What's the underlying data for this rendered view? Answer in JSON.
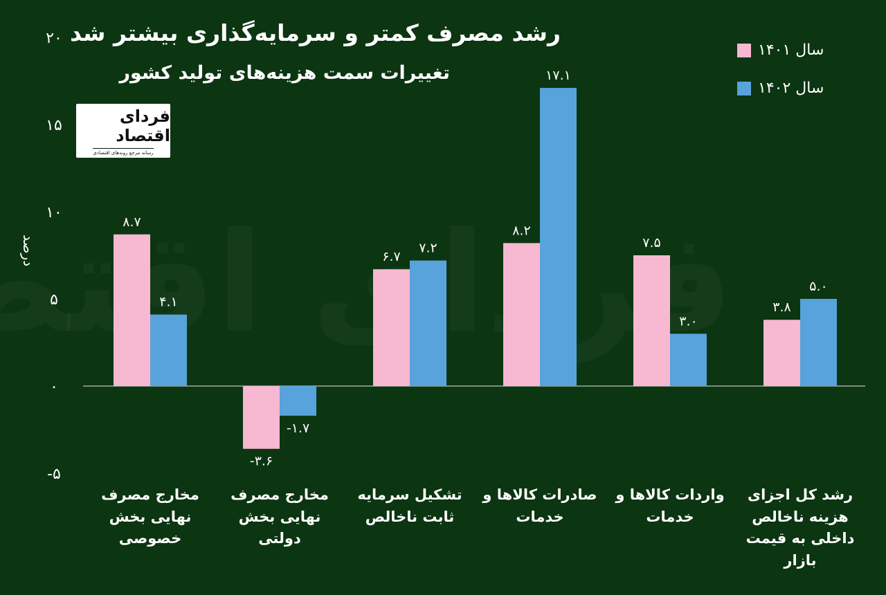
{
  "header": {
    "title": "رشد مصرف کمتر و سرمایه‌گذاری بیشتر شد",
    "subtitle": "تغییرات سمت هزینه‌های تولید کشور"
  },
  "logo": {
    "text": "فردای اقتصاد",
    "tagline": "رسانه مرجع روندهای اقتصادی"
  },
  "watermark": "فردای اقتصاد",
  "colors": {
    "background": "#0c3512",
    "series_1401": "#f7b8d2",
    "series_1402": "#58a3dc"
  },
  "chart_data": {
    "type": "bar",
    "ylabel": "درصد",
    "ylim": [
      -5,
      20
    ],
    "yticks": [
      {
        "v": -5,
        "label": "-۵"
      },
      {
        "v": 0,
        "label": "۰"
      },
      {
        "v": 5,
        "label": "۵"
      },
      {
        "v": 10,
        "label": "۱۰"
      },
      {
        "v": 15,
        "label": "۱۵"
      },
      {
        "v": 20,
        "label": "۲۰"
      }
    ],
    "categories": [
      "مخارج مصرف نهایی بخش خصوصی",
      "مخارج مصرف نهایی بخش دولتی",
      "تشکیل سرمایه ثابت ناخالص",
      "صادرات کالاها و خدمات",
      "واردات کالاها و خدمات",
      "رشد کل اجزای هزینه ناخالص داخلی به قیمت بازار"
    ],
    "series": [
      {
        "name": "سال ۱۴۰۱",
        "color": "#f7b8d2",
        "values": [
          8.7,
          -3.6,
          6.7,
          8.2,
          7.5,
          3.8
        ],
        "labels": [
          "۸.۷",
          "-۳.۶",
          "۶.۷",
          "۸.۲",
          "۷.۵",
          "۳.۸"
        ]
      },
      {
        "name": "سال ۱۴۰۲",
        "color": "#58a3dc",
        "values": [
          4.1,
          -1.7,
          7.2,
          17.1,
          3.0,
          5.0
        ],
        "labels": [
          "۴.۱",
          "-۱.۷",
          "۷.۲",
          "۱۷.۱",
          "۳.۰",
          "۵.۰"
        ]
      }
    ],
    "legend": "top-right",
    "grid": false
  }
}
